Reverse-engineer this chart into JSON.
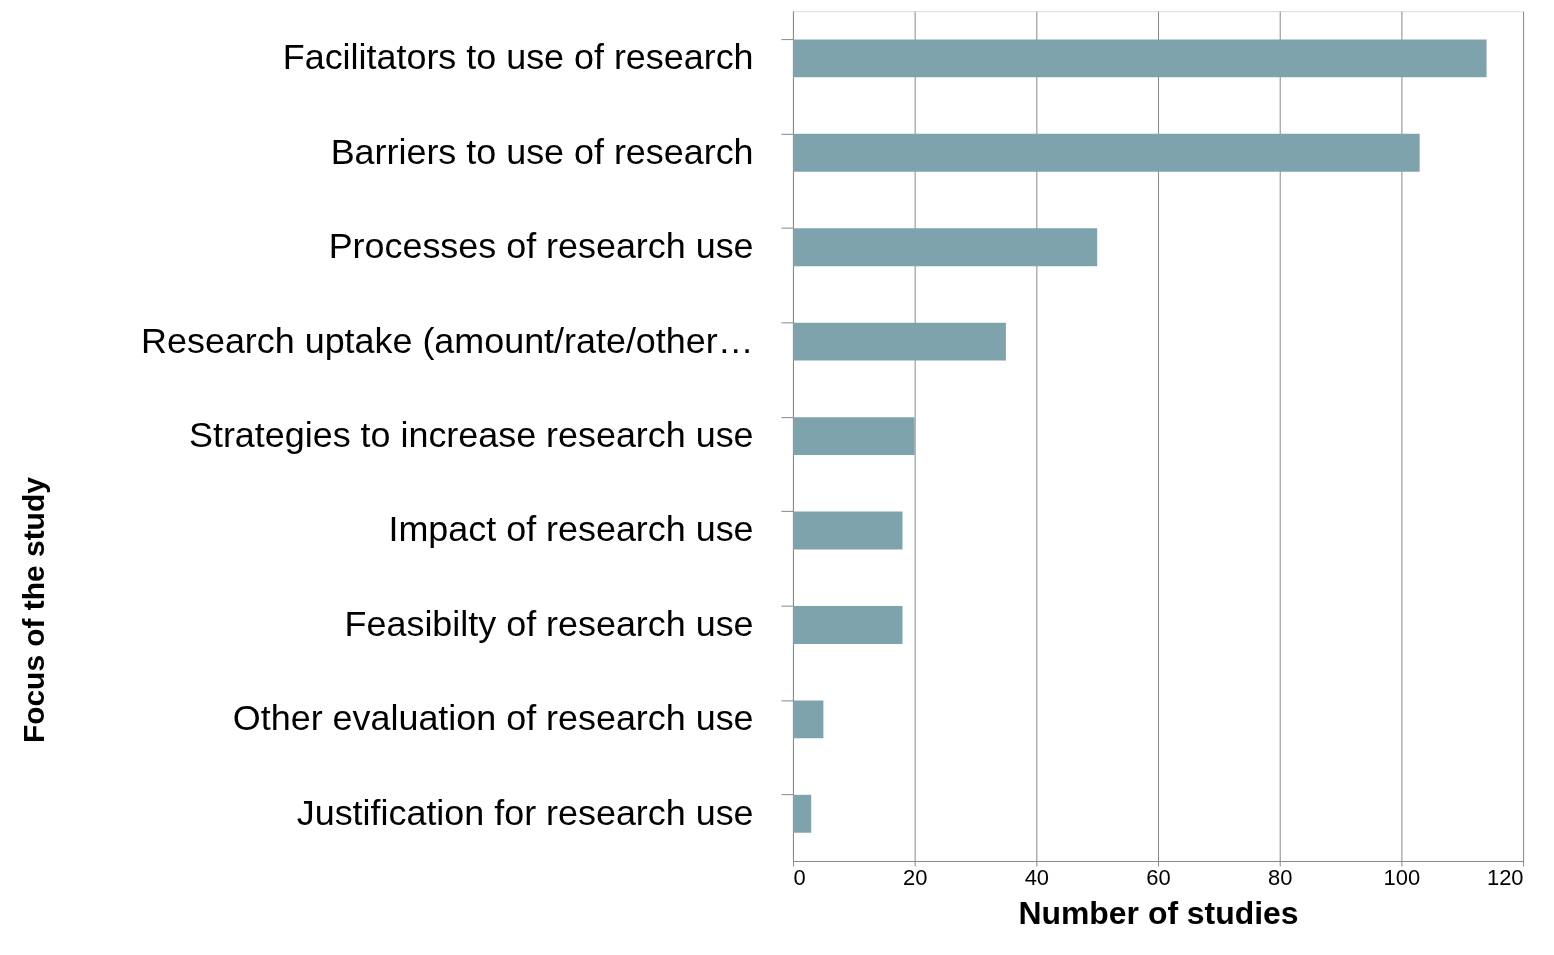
{
  "chart_data": {
    "type": "bar",
    "orientation": "horizontal",
    "xlabel": "Number of studies",
    "ylabel": "Focus of the study",
    "categories": [
      "Facilitators to use of research",
      "Barriers to use of research",
      "Processes of research use",
      "Research uptake (amount/rate/other…",
      "Strategies to increase research use",
      "Impact of research use",
      "Feasibilty of research use",
      "Other evaluation of research use",
      "Justification for research use"
    ],
    "values": [
      114,
      103,
      50,
      35,
      20,
      18,
      18,
      5,
      3
    ],
    "color": "#7fa3ac",
    "xlim": [
      0,
      120
    ],
    "xticks": [
      0,
      20,
      40,
      60,
      80,
      100,
      120
    ],
    "grid": "x"
  }
}
